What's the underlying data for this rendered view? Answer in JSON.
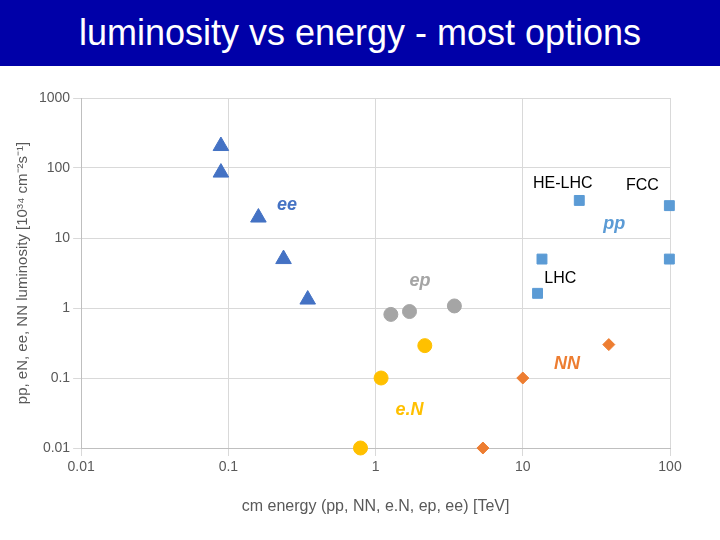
{
  "chart_data": {
    "type": "scatter",
    "title": "luminosity vs energy - most options",
    "x_label": "cm energy (pp, NN, e.N, ep, ee) [TeV]",
    "y_label": "pp, eN, ee, NN luminosity [10³⁴ cm⁻²s⁻¹]",
    "log": true,
    "grid": true,
    "xlim": [
      0.01,
      100
    ],
    "xticks": [
      0.01,
      0.1,
      1,
      10,
      100
    ],
    "ylim": [
      0.01,
      1000
    ],
    "yticks": [
      0.01,
      0.1,
      1,
      10,
      100,
      1000
    ],
    "series": [
      {
        "name": "ee",
        "color": "#4472c4",
        "marker": "triangle",
        "label_at": [
          0.25,
          30
        ],
        "x": [
          0.089,
          0.089,
          0.16,
          0.237,
          0.346
        ],
        "values": [
          206,
          86,
          19.6,
          5,
          1.32
        ]
      },
      {
        "name": "ep",
        "color": "#a5a5a5",
        "marker": "circle",
        "label_at": [
          2.0,
          2.4
        ],
        "x": [
          1.27,
          1.7,
          3.43
        ],
        "values": [
          0.81,
          0.89,
          1.07
        ]
      },
      {
        "name": "e.N",
        "color": "#ffc000",
        "marker": "circle",
        "label_at": [
          1.7,
          0.035
        ],
        "x": [
          0.79,
          1.09,
          2.16
        ],
        "values": [
          0.01,
          0.1,
          0.29
        ]
      },
      {
        "name": "NN",
        "color": "#ed7d31",
        "marker": "diamond",
        "label_at": [
          20,
          0.16
        ],
        "x": [
          5.36,
          10,
          38.4
        ],
        "values": [
          0.01,
          0.1,
          0.3
        ]
      },
      {
        "name": "pp",
        "color": "#5b9bd5",
        "marker": "square",
        "label_at": [
          41.8,
          16
        ],
        "x": [
          12.6,
          13.5,
          24.2,
          99,
          99
        ],
        "values": [
          1.62,
          5,
          34.4,
          29,
          5
        ]
      }
    ],
    "annotations": [
      {
        "text": "HE-LHC",
        "x": 18.7,
        "y": 60
      },
      {
        "text": "FCC",
        "x": 65,
        "y": 56
      },
      {
        "text": "LHC",
        "x": 18,
        "y": 2.6
      }
    ]
  }
}
